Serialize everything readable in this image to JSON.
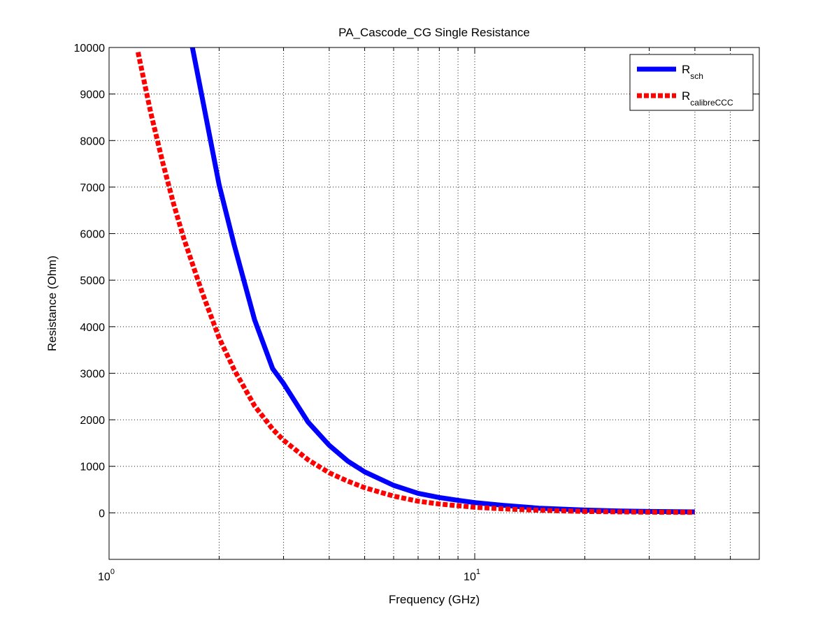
{
  "chart_data": {
    "type": "line",
    "title": "PA_Cascode_CG Single Resistance",
    "xlabel": "Frequency (GHz)",
    "ylabel": "Resistance (Ohm)",
    "xscale": "log",
    "xlim": [
      1,
      60
    ],
    "ylim": [
      -1000,
      10000
    ],
    "yticks": [
      0,
      1000,
      2000,
      3000,
      4000,
      5000,
      6000,
      7000,
      8000,
      9000,
      10000
    ],
    "xtick_labels": [
      {
        "base": "10",
        "exp": "0",
        "value": 1
      },
      {
        "base": "10",
        "exp": "1",
        "value": 10
      }
    ],
    "grid": true,
    "legend_position": "top-right",
    "series": [
      {
        "name": "R",
        "subscript": "sch",
        "color": "#0000ff",
        "style": "solid",
        "x": [
          1.6,
          1.7,
          1.8,
          2.0,
          2.2,
          2.5,
          2.8,
          3.0,
          3.5,
          4.0,
          4.5,
          5.0,
          6.0,
          7.0,
          8.0,
          9.0,
          10,
          12,
          15,
          20,
          25,
          30,
          40
        ],
        "y": [
          10950,
          9900,
          8900,
          7050,
          5750,
          4150,
          3100,
          2780,
          1950,
          1450,
          1110,
          880,
          590,
          420,
          330,
          270,
          220,
          160,
          100,
          60,
          40,
          30,
          20
        ]
      },
      {
        "name": "R",
        "subscript": "calibreCCC",
        "color": "#ff0000",
        "style": "dashed",
        "x": [
          1.2,
          1.3,
          1.4,
          1.5,
          1.6,
          1.8,
          2.0,
          2.2,
          2.5,
          2.8,
          3.0,
          3.5,
          4.0,
          4.5,
          5.0,
          6.0,
          7.0,
          8.0,
          10,
          12,
          15,
          20,
          25,
          30,
          40
        ],
        "y": [
          9900,
          8600,
          7550,
          6650,
          5900,
          4720,
          3760,
          3070,
          2300,
          1800,
          1560,
          1140,
          860,
          680,
          540,
          360,
          250,
          190,
          120,
          85,
          55,
          30,
          20,
          15,
          10
        ]
      }
    ]
  }
}
